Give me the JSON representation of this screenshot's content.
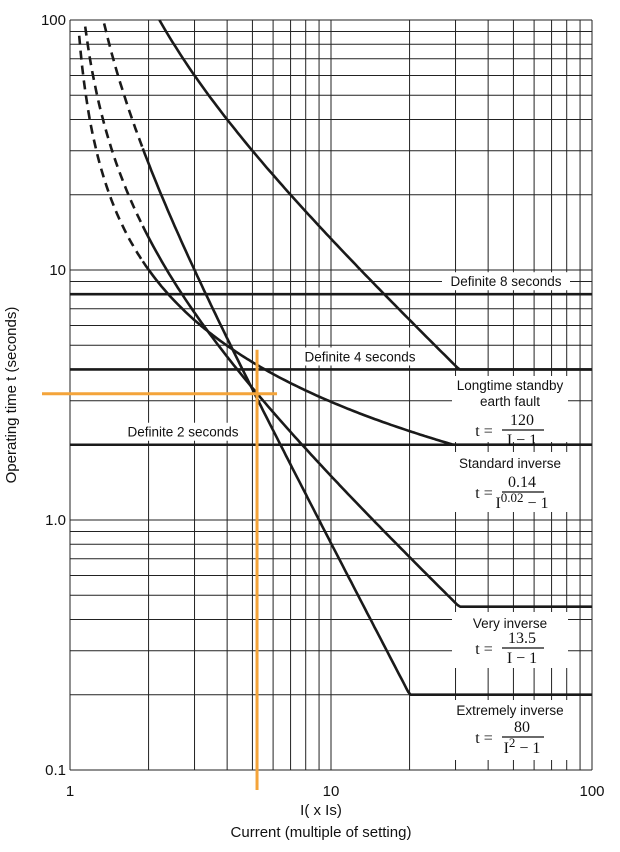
{
  "chart_data": {
    "type": "line",
    "scale": {
      "x": "log",
      "y": "log"
    },
    "xlim": [
      1,
      100
    ],
    "ylim": [
      0.1,
      100
    ],
    "x_ticks": [
      {
        "value": 1,
        "label": "1"
      },
      {
        "value": 10,
        "label": "10"
      },
      {
        "value": 100,
        "label": "100"
      }
    ],
    "y_ticks": [
      {
        "value": 0.1,
        "label": "0.1"
      },
      {
        "value": 1,
        "label": "1.0"
      },
      {
        "value": 10,
        "label": "10"
      },
      {
        "value": 100,
        "label": "100"
      }
    ],
    "xlabel_line1": "I( x Is)",
    "xlabel_line2": "Current (multiple of setting)",
    "ylabel": "Operating time t (seconds)",
    "grid": true,
    "series": [
      {
        "key": "longtime",
        "label": "Longtime standby",
        "label2": "earth fault",
        "formula_num": "120",
        "formula_den": "I − 1",
        "max_x": 35,
        "coef": 120,
        "exp": 1
      },
      {
        "key": "standard",
        "label": "Standard inverse",
        "formula_num": "0.14",
        "formula_den_base": "I",
        "formula_den_exp": "0.02",
        "formula_den_tail": " − 1",
        "min_x": 1.9,
        "max_x": 32,
        "coef": 0.14,
        "exp": 0.02
      },
      {
        "key": "very",
        "label": "Very inverse",
        "formula_num": "13.5",
        "formula_den": "I − 1",
        "min_x": 1.9,
        "max_x": 32,
        "coef": 13.5,
        "exp": 1
      },
      {
        "key": "extremely",
        "label": "Extremely inverse",
        "formula_num": "80",
        "formula_den_base": "I",
        "formula_den_exp": "2",
        "formula_den_tail": " − 1",
        "min_x": 1.9,
        "max_x": 21,
        "coef": 80,
        "exp": 2
      }
    ],
    "definite": [
      {
        "value": 8,
        "label": "Definite 8 seconds"
      },
      {
        "value": 4,
        "label": "Definite 4 seconds"
      },
      {
        "value": 2,
        "label": "Definite 2 seconds"
      }
    ],
    "formula_prefix": "t =",
    "operating_point": {
      "x": 5.3,
      "y": 3.2
    },
    "colors": {
      "curve": "#1a1a1a",
      "grid": "#222222",
      "marker": "#f4a43a"
    }
  }
}
